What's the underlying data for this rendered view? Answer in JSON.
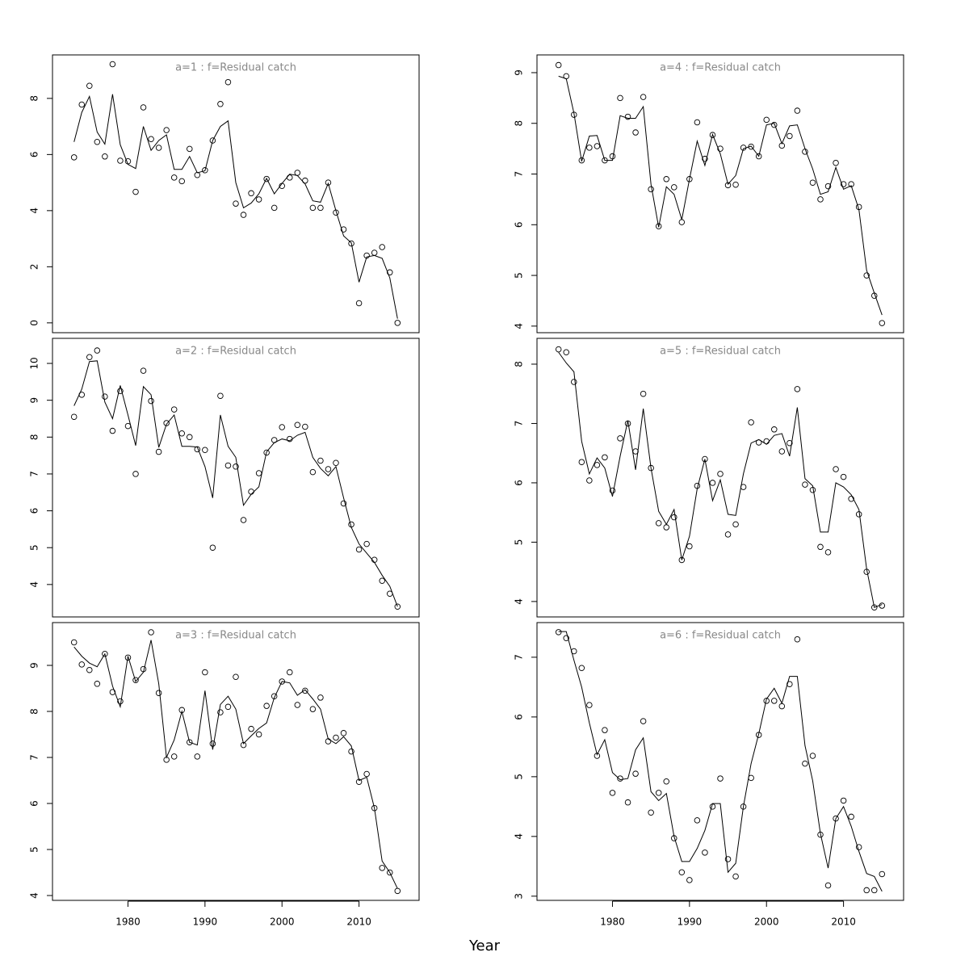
{
  "xlabel": "Year",
  "chart_data": [
    {
      "type": "line",
      "title": "a=1  :  f=Residual catch",
      "x": [
        1973,
        1974,
        1975,
        1976,
        1977,
        1978,
        1979,
        1980,
        1981,
        1982,
        1983,
        1984,
        1985,
        1986,
        1987,
        1988,
        1989,
        1990,
        1991,
        1992,
        1993,
        1994,
        1995,
        1996,
        1997,
        1998,
        1999,
        2000,
        2001,
        2002,
        2003,
        2004,
        2005,
        2006,
        2007,
        2008,
        2009,
        2010,
        2011,
        2012,
        2013,
        2014,
        2015
      ],
      "xlim": [
        1970.2,
        2017.8
      ],
      "ylim": [
        -0.35,
        9.55
      ],
      "yticks": [
        0,
        2,
        4,
        6,
        8
      ],
      "series": [
        {
          "mode": "points",
          "color": "#000000",
          "values": [
            5.9,
            7.78,
            8.45,
            6.45,
            5.93,
            9.22,
            5.78,
            5.76,
            4.67,
            7.68,
            6.55,
            6.24,
            6.87,
            5.18,
            5.05,
            6.2,
            5.27,
            5.44,
            6.5,
            7.8,
            8.58,
            4.25,
            3.85,
            4.62,
            4.4,
            5.13,
            4.1,
            4.88,
            5.18,
            5.35,
            5.07,
            4.1,
            4.1,
            5.0,
            3.93,
            3.33,
            2.83,
            0.7,
            2.4,
            2.5,
            2.7,
            1.8,
            0.0
          ]
        },
        {
          "mode": "line",
          "color": "#000000",
          "values": [
            6.45,
            7.5,
            8.07,
            6.8,
            6.37,
            8.15,
            6.35,
            5.65,
            5.5,
            7.0,
            6.15,
            6.5,
            6.7,
            5.47,
            5.47,
            5.93,
            5.35,
            5.42,
            6.5,
            7.0,
            7.2,
            5.0,
            4.1,
            4.27,
            4.6,
            5.15,
            4.6,
            4.97,
            5.3,
            5.25,
            4.95,
            4.35,
            4.3,
            4.97,
            4.0,
            3.1,
            2.85,
            1.45,
            2.35,
            2.4,
            2.3,
            1.6,
            0.15
          ]
        }
      ]
    },
    {
      "type": "line",
      "title": "a=2  :  f=Residual catch",
      "x": [
        1973,
        1974,
        1975,
        1976,
        1977,
        1978,
        1979,
        1980,
        1981,
        1982,
        1983,
        1984,
        1985,
        1986,
        1987,
        1988,
        1989,
        1990,
        1991,
        1992,
        1993,
        1994,
        1995,
        1996,
        1997,
        1998,
        1999,
        2000,
        2001,
        2002,
        2003,
        2004,
        2005,
        2006,
        2007,
        2008,
        2009,
        2010,
        2011,
        2012,
        2013,
        2014,
        2015
      ],
      "xlim": [
        1970.2,
        2017.8
      ],
      "ylim": [
        3.12,
        10.68
      ],
      "yticks": [
        4,
        5,
        6,
        7,
        8,
        9,
        10
      ],
      "series": [
        {
          "mode": "points",
          "color": "#000000",
          "values": [
            8.55,
            9.15,
            10.17,
            10.35,
            9.1,
            8.17,
            9.25,
            8.3,
            7.0,
            9.8,
            8.98,
            7.6,
            8.38,
            8.75,
            8.1,
            8.0,
            7.67,
            7.65,
            5.0,
            9.12,
            7.23,
            7.2,
            5.75,
            6.52,
            7.02,
            7.58,
            7.92,
            8.27,
            7.95,
            8.33,
            8.28,
            7.05,
            7.36,
            7.13,
            7.3,
            6.2,
            5.63,
            4.95,
            5.1,
            4.67,
            4.1,
            3.75,
            3.4
          ]
        },
        {
          "mode": "line",
          "color": "#000000",
          "values": [
            8.85,
            9.3,
            10.05,
            10.07,
            8.95,
            8.5,
            9.4,
            8.6,
            7.77,
            9.37,
            9.15,
            7.72,
            8.35,
            8.6,
            7.75,
            7.75,
            7.73,
            7.2,
            6.35,
            8.6,
            7.75,
            7.45,
            6.15,
            6.45,
            6.65,
            7.6,
            7.85,
            7.95,
            7.9,
            8.05,
            8.13,
            7.45,
            7.15,
            6.95,
            7.2,
            6.35,
            5.55,
            5.1,
            4.85,
            4.6,
            4.25,
            3.95,
            3.4
          ]
        }
      ]
    },
    {
      "type": "line",
      "title": "a=3  :  f=Residual catch",
      "x": [
        1973,
        1974,
        1975,
        1976,
        1977,
        1978,
        1979,
        1980,
        1981,
        1982,
        1983,
        1984,
        1985,
        1986,
        1987,
        1988,
        1989,
        1990,
        1991,
        1992,
        1993,
        1994,
        1995,
        1996,
        1997,
        1998,
        1999,
        2000,
        2001,
        2002,
        2003,
        2004,
        2005,
        2006,
        2007,
        2008,
        2009,
        2010,
        2011,
        2012,
        2013,
        2014,
        2015
      ],
      "xlim": [
        1970.2,
        2017.8
      ],
      "xticks": [
        1980,
        1990,
        2000,
        2010
      ],
      "ylim": [
        3.895,
        9.93
      ],
      "yticks": [
        4,
        5,
        6,
        7,
        8,
        9
      ],
      "series": [
        {
          "mode": "points",
          "color": "#000000",
          "values": [
            9.5,
            9.02,
            8.9,
            8.6,
            9.25,
            8.42,
            8.22,
            9.17,
            8.68,
            8.92,
            9.72,
            8.4,
            6.95,
            7.02,
            8.03,
            7.33,
            7.02,
            8.85,
            7.3,
            7.98,
            8.1,
            8.75,
            7.27,
            7.62,
            7.5,
            8.12,
            8.33,
            8.65,
            8.85,
            8.14,
            8.45,
            8.05,
            8.3,
            7.35,
            7.43,
            7.53,
            7.13,
            6.47,
            6.64,
            5.9,
            4.6,
            4.5,
            4.1
          ]
        },
        {
          "mode": "line",
          "color": "#000000",
          "values": [
            9.4,
            9.2,
            9.05,
            8.97,
            9.25,
            8.55,
            8.1,
            9.2,
            8.65,
            8.85,
            9.55,
            8.6,
            7.0,
            7.38,
            8.0,
            7.33,
            7.27,
            8.45,
            7.17,
            8.15,
            8.33,
            8.05,
            7.3,
            7.47,
            7.63,
            7.75,
            8.3,
            8.65,
            8.62,
            8.35,
            8.47,
            8.27,
            8.05,
            7.4,
            7.3,
            7.45,
            7.25,
            6.5,
            6.57,
            5.9,
            4.75,
            4.5,
            4.15
          ]
        }
      ]
    },
    {
      "type": "line",
      "title": "a=4  :  f=Residual catch",
      "x": [
        1973,
        1974,
        1975,
        1976,
        1977,
        1978,
        1979,
        1980,
        1981,
        1982,
        1983,
        1984,
        1985,
        1986,
        1987,
        1988,
        1989,
        1990,
        1991,
        1992,
        1993,
        1994,
        1995,
        1996,
        1997,
        1998,
        1999,
        2000,
        2001,
        2002,
        2003,
        2004,
        2005,
        2006,
        2007,
        2008,
        2009,
        2010,
        2011,
        2012,
        2013,
        2014,
        2015
      ],
      "xlim": [
        1970.2,
        2017.8
      ],
      "ylim": [
        3.87,
        9.35
      ],
      "yticks": [
        4,
        5,
        6,
        7,
        8,
        9
      ],
      "series": [
        {
          "mode": "points",
          "color": "#000000",
          "values": [
            9.15,
            8.93,
            8.17,
            7.27,
            7.52,
            7.55,
            7.27,
            7.35,
            8.5,
            8.13,
            7.82,
            8.52,
            6.7,
            5.97,
            6.9,
            6.74,
            6.05,
            6.9,
            8.02,
            7.3,
            7.77,
            7.5,
            6.78,
            6.79,
            7.52,
            7.54,
            7.35,
            8.07,
            7.97,
            7.56,
            7.75,
            8.25,
            7.44,
            6.83,
            6.5,
            6.76,
            7.22,
            6.8,
            6.8,
            6.35,
            5.0,
            4.6,
            4.06
          ]
        },
        {
          "mode": "line",
          "color": "#000000",
          "values": [
            8.93,
            8.88,
            8.2,
            7.25,
            7.75,
            7.76,
            7.27,
            7.27,
            8.15,
            8.1,
            8.1,
            8.33,
            6.8,
            5.95,
            6.75,
            6.6,
            6.1,
            6.9,
            7.65,
            7.17,
            7.78,
            7.4,
            6.8,
            6.97,
            7.5,
            7.55,
            7.35,
            7.97,
            8.0,
            7.6,
            7.95,
            7.97,
            7.5,
            7.1,
            6.6,
            6.65,
            7.13,
            6.7,
            6.77,
            6.3,
            5.1,
            4.65,
            4.22
          ]
        }
      ]
    },
    {
      "type": "line",
      "title": "a=5  :  f=Residual catch",
      "x": [
        1973,
        1974,
        1975,
        1976,
        1977,
        1978,
        1979,
        1980,
        1981,
        1982,
        1983,
        1984,
        1985,
        1986,
        1987,
        1988,
        1989,
        1990,
        1991,
        1992,
        1993,
        1994,
        1995,
        1996,
        1997,
        1998,
        1999,
        2000,
        2001,
        2002,
        2003,
        2004,
        2005,
        2006,
        2007,
        2008,
        2009,
        2010,
        2011,
        2012,
        2013,
        2014,
        2015
      ],
      "xlim": [
        1970.2,
        2017.8
      ],
      "ylim": [
        3.74,
        8.435
      ],
      "yticks": [
        4,
        5,
        6,
        7,
        8
      ],
      "series": [
        {
          "mode": "points",
          "color": "#000000",
          "values": [
            8.25,
            8.2,
            7.7,
            6.35,
            6.04,
            6.3,
            6.43,
            5.87,
            6.75,
            7.0,
            6.53,
            7.5,
            6.25,
            5.32,
            5.25,
            5.42,
            4.7,
            4.93,
            5.95,
            6.4,
            6.0,
            6.15,
            5.13,
            5.3,
            5.93,
            7.02,
            6.68,
            6.7,
            6.9,
            6.53,
            6.67,
            7.58,
            5.97,
            5.88,
            4.92,
            4.83,
            6.23,
            6.1,
            5.73,
            5.47,
            4.5,
            3.9,
            3.93
          ]
        },
        {
          "mode": "line",
          "color": "#000000",
          "values": [
            8.2,
            8.02,
            7.87,
            6.7,
            6.15,
            6.42,
            6.25,
            5.77,
            6.45,
            7.05,
            6.22,
            7.25,
            6.25,
            5.52,
            5.3,
            5.55,
            4.7,
            5.1,
            5.9,
            6.4,
            5.7,
            6.05,
            5.47,
            5.45,
            6.15,
            6.67,
            6.73,
            6.65,
            6.8,
            6.83,
            6.45,
            7.27,
            6.07,
            5.95,
            5.17,
            5.17,
            6.0,
            5.93,
            5.8,
            5.55,
            4.55,
            3.9,
            3.95
          ]
        }
      ]
    },
    {
      "type": "line",
      "title": "a=6  :  f=Residual catch",
      "x": [
        1973,
        1974,
        1975,
        1976,
        1977,
        1978,
        1979,
        1980,
        1981,
        1982,
        1983,
        1984,
        1985,
        1986,
        1987,
        1988,
        1989,
        1990,
        1991,
        1992,
        1993,
        1994,
        1995,
        1996,
        1997,
        1998,
        1999,
        2000,
        2001,
        2002,
        2003,
        2004,
        2005,
        2006,
        2007,
        2008,
        2009,
        2010,
        2011,
        2012,
        2013,
        2014,
        2015
      ],
      "xlim": [
        1970.2,
        2017.8
      ],
      "xticks": [
        1980,
        1990,
        2000,
        2010
      ],
      "ylim": [
        2.93,
        7.58
      ],
      "yticks": [
        3,
        4,
        5,
        6,
        7
      ],
      "series": [
        {
          "mode": "points",
          "color": "#000000",
          "values": [
            7.42,
            7.32,
            7.1,
            6.82,
            6.2,
            5.35,
            5.78,
            4.73,
            4.97,
            4.57,
            5.05,
            5.93,
            4.4,
            4.73,
            4.92,
            3.97,
            3.4,
            3.27,
            4.27,
            3.73,
            4.5,
            4.97,
            3.62,
            3.33,
            4.5,
            4.98,
            5.7,
            6.27,
            6.27,
            6.18,
            6.55,
            7.3,
            5.22,
            5.35,
            4.03,
            3.18,
            4.3,
            4.6,
            4.33,
            3.82,
            3.1,
            3.1,
            3.37
          ]
        },
        {
          "mode": "line",
          "color": "#000000",
          "values": [
            7.43,
            7.43,
            6.95,
            6.5,
            5.9,
            5.37,
            5.62,
            5.07,
            4.95,
            4.97,
            5.45,
            5.65,
            4.75,
            4.6,
            4.72,
            4.0,
            3.58,
            3.58,
            3.8,
            4.1,
            4.55,
            4.55,
            3.4,
            3.55,
            4.5,
            5.22,
            5.72,
            6.3,
            6.48,
            6.23,
            6.68,
            6.68,
            5.52,
            4.93,
            4.05,
            3.47,
            4.3,
            4.5,
            4.17,
            3.75,
            3.38,
            3.33,
            3.08
          ]
        }
      ]
    }
  ]
}
